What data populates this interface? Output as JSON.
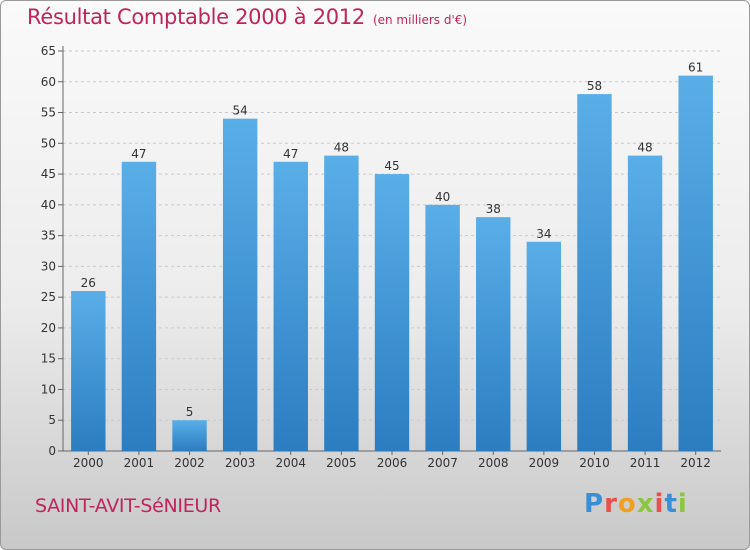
{
  "header": {
    "title": "Résultat Comptable 2000 à 2012",
    "unit": "(en milliers d'€)"
  },
  "footer": {
    "place": "SAINT-AVIT-SéNIEUR",
    "logo_letters": [
      "P",
      "r",
      "o",
      "x",
      "i",
      "t",
      "i"
    ]
  },
  "colors": {
    "bar_top": "#5aaee8",
    "bar_bottom": "#2b7dc0",
    "title": "#c0245c"
  },
  "chart_data": {
    "type": "bar",
    "title": "Résultat Comptable 2000 à 2012",
    "xlabel": "",
    "ylabel": "",
    "categories": [
      "2000",
      "2001",
      "2002",
      "2003",
      "2004",
      "2005",
      "2006",
      "2007",
      "2008",
      "2009",
      "2010",
      "2011",
      "2012"
    ],
    "values": [
      26,
      47,
      5,
      54,
      47,
      48,
      45,
      40,
      38,
      34,
      58,
      48,
      61
    ],
    "ylim": [
      0,
      65
    ],
    "yticks": [
      0,
      5,
      10,
      15,
      20,
      25,
      30,
      35,
      40,
      45,
      50,
      55,
      60,
      65
    ],
    "grid": true,
    "data_labels": true
  }
}
